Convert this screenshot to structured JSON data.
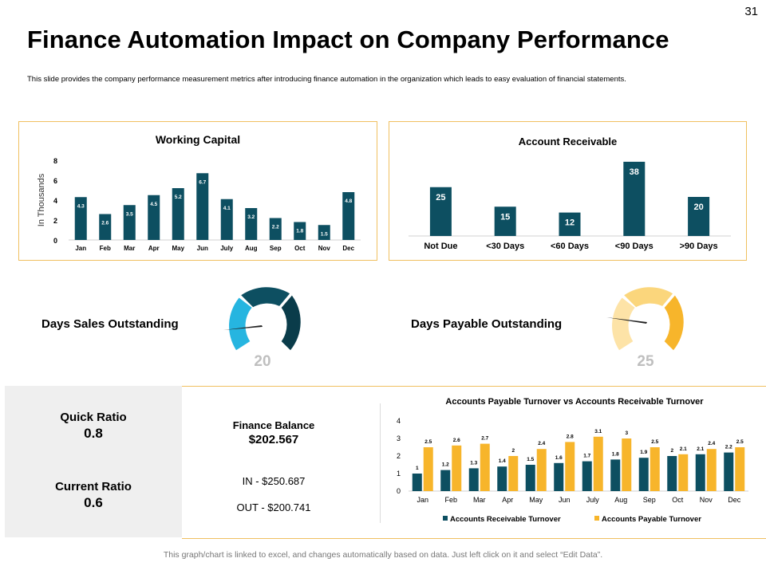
{
  "page_number": "31",
  "title": "Finance Automation Impact on Company Performance",
  "subtitle": "This slide provides the company performance measurement metrics after introducing finance automation in the organization which leads to easy evaluation of financial statements.",
  "colors": {
    "teal": "#0d4f61",
    "orange": "#f7b52b",
    "dark_teal": "#0a3c4a",
    "light_blue": "#26b5e0",
    "gold_light": "#fde3a7",
    "gold_mid": "#fbd67c"
  },
  "gauges": {
    "dso": {
      "label": "Days Sales Outstanding",
      "value": "20"
    },
    "dpo": {
      "label": "Days Payable Outstanding",
      "value": "25"
    }
  },
  "ratios": {
    "quick_label": "Quick Ratio",
    "quick_value": "0.8",
    "current_label": "Current Ratio",
    "current_value": "0.6"
  },
  "finance": {
    "title": "Finance Balance",
    "amount": "$202.567",
    "in": "IN - $250.687",
    "out": "OUT - $200.741"
  },
  "footer": "This graph/chart is linked to excel, and changes automatically based on data. Just left click on it and select “Edit Data”.",
  "chart_data": [
    {
      "id": "working_capital",
      "type": "bar",
      "title": "Working Capital",
      "ylabel": "In Thousands",
      "categories": [
        "Jan",
        "Feb",
        "Mar",
        "Apr",
        "May",
        "Jun",
        "July",
        "Aug",
        "Sep",
        "Oct",
        "Nov",
        "Dec"
      ],
      "values": [
        4.3,
        2.6,
        3.5,
        4.5,
        5.2,
        6.7,
        4.1,
        3.2,
        2.2,
        1.8,
        1.5,
        4.8
      ],
      "labels": [
        "4.3",
        "2.6",
        "3.5",
        "4.5",
        "5.2",
        "6.7",
        "4.1",
        "3.2",
        "2.2",
        "1.8",
        "1.5",
        "4.8"
      ],
      "ylim": [
        0,
        8
      ],
      "yticks": [
        "0",
        "2",
        "4",
        "6",
        "8"
      ]
    },
    {
      "id": "account_receivable",
      "type": "bar",
      "title": "Account Receivable",
      "categories": [
        "Not Due",
        "<30 Days",
        "<60 Days",
        "<90 Days",
        ">90 Days"
      ],
      "values": [
        25,
        15,
        12,
        38,
        20
      ],
      "labels": [
        "25",
        "15",
        "12",
        "38",
        "20"
      ],
      "ylim": [
        0,
        40
      ]
    },
    {
      "id": "turnover",
      "type": "bar",
      "title": "Accounts Payable Turnover vs Accounts Receivable Turnover",
      "categories": [
        "Jan",
        "Feb",
        "Mar",
        "Apr",
        "May",
        "Jun",
        "July",
        "Aug",
        "Sep",
        "Oct",
        "Nov",
        "Dec"
      ],
      "ylim": [
        0,
        4
      ],
      "yticks": [
        "0",
        "1",
        "2",
        "3",
        "4"
      ],
      "series": [
        {
          "name": "Accounts Receivable Turnover",
          "values": [
            1,
            1.2,
            1.3,
            1.4,
            1.5,
            1.6,
            1.7,
            1.8,
            1.9,
            2,
            2.1,
            2.2
          ],
          "labels": [
            "1",
            "1.2",
            "1.3",
            "1.4",
            "1.5",
            "1.6",
            "1.7",
            "1.8",
            "1.9",
            "2",
            "2.1",
            "2.2"
          ]
        },
        {
          "name": "Accounts Payable Turnover",
          "values": [
            2.5,
            2.6,
            2.7,
            2,
            2.4,
            2.8,
            3.1,
            3,
            2.5,
            2.1,
            2.4,
            2.5
          ],
          "labels": [
            "2.5",
            "2.6",
            "2.7",
            "2",
            "2.4",
            "2.8",
            "3.1",
            "3",
            "2.5",
            "2.1",
            "2.4",
            "2.5"
          ]
        }
      ],
      "legend": "bottom"
    }
  ]
}
